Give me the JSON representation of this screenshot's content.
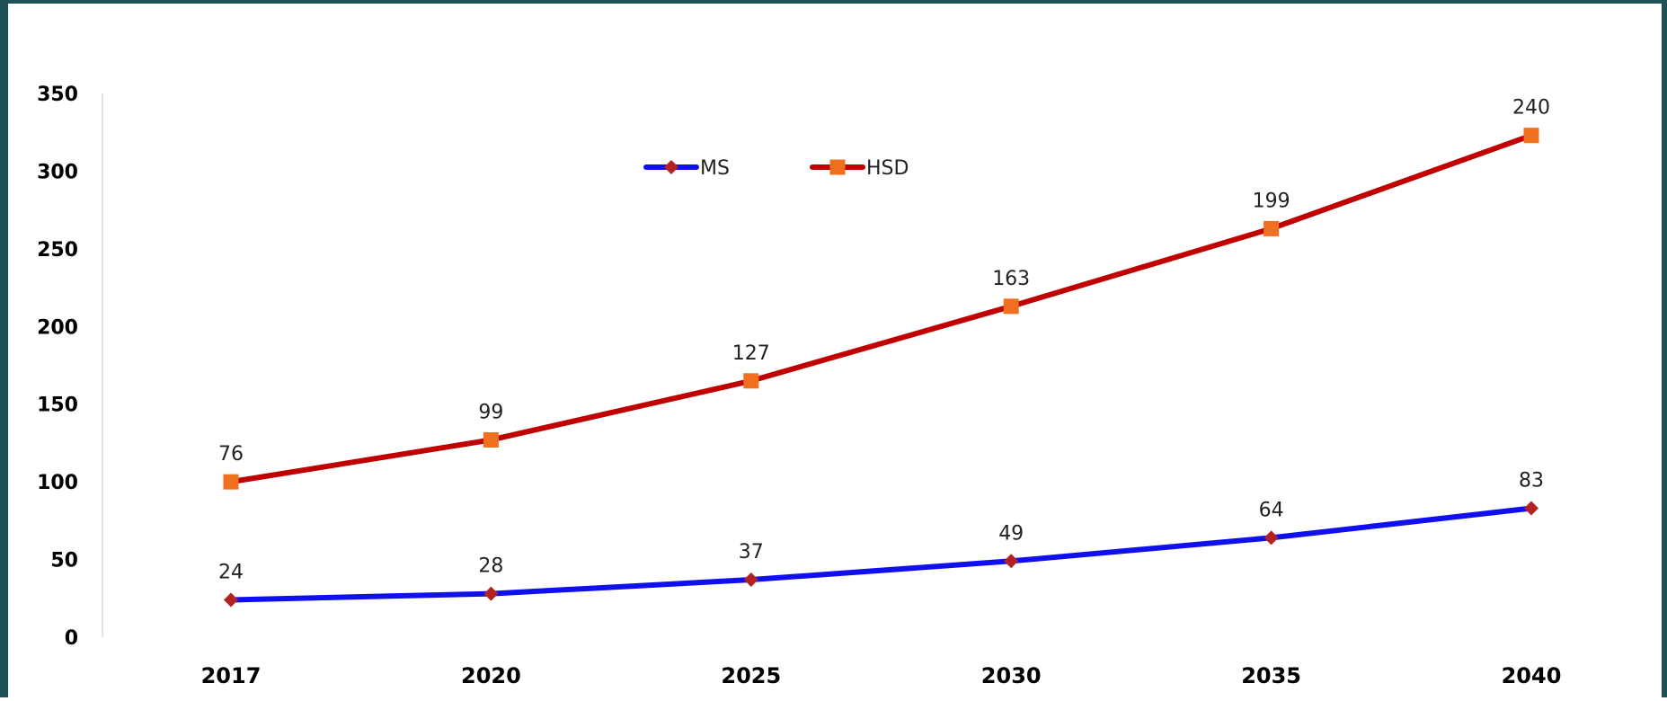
{
  "chart_data": {
    "type": "line",
    "categories": [
      "2017",
      "2020",
      "2025",
      "2030",
      "2035",
      "2040"
    ],
    "series": [
      {
        "name": "MS",
        "values": [
          24,
          28,
          37,
          49,
          64,
          83
        ],
        "color": "#1010ee",
        "marker": "diamond",
        "marker_color": "#b22222"
      },
      {
        "name": "HSD",
        "values": [
          100,
          127,
          165,
          213,
          263,
          323
        ],
        "data_labels": [
          "76",
          "99",
          "127",
          "163",
          "199",
          "240"
        ],
        "color": "#c00000",
        "marker": "square",
        "marker_color": "#f07020"
      }
    ],
    "ylim": [
      0,
      350
    ],
    "yticks": [
      0,
      50,
      100,
      150,
      200,
      250,
      300,
      350
    ],
    "legend": "top-center",
    "grid": false
  }
}
